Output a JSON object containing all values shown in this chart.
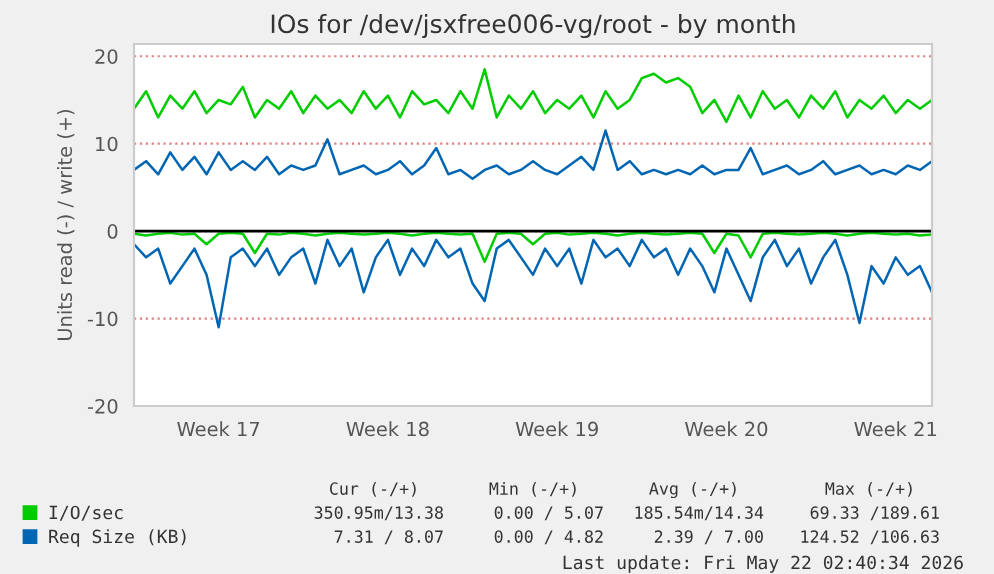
{
  "chart_data": {
    "type": "line",
    "title": "IOs for /dev/jsxfree006-vg/root - by month",
    "ylabel": "Units read (-) / write (+)",
    "categories": [
      null,
      null,
      null,
      null,
      null,
      null,
      null,
      "Week 17",
      null,
      null,
      null,
      null,
      null,
      null,
      null,
      null,
      null,
      null,
      null,
      null,
      null,
      "Week 18",
      null,
      null,
      null,
      null,
      null,
      null,
      null,
      null,
      null,
      null,
      null,
      null,
      null,
      "Week 19",
      null,
      null,
      null,
      null,
      null,
      null,
      null,
      null,
      null,
      null,
      null,
      null,
      null,
      "Week 20",
      null,
      null,
      null,
      null,
      null,
      null,
      null,
      null,
      null,
      null,
      null,
      null,
      null,
      "Week 21",
      null,
      null,
      null
    ],
    "series": [
      {
        "name": "I/O/sec",
        "color": "#00cc00",
        "values": [
          14,
          16,
          13,
          15.5,
          14,
          16,
          13.5,
          15,
          14.5,
          16.5,
          13,
          15,
          14,
          16,
          13.5,
          15.5,
          14,
          15,
          13.5,
          16,
          14,
          15.5,
          13,
          16,
          14.5,
          15,
          13.5,
          16,
          14,
          18.5,
          13,
          15.5,
          14,
          16,
          13.5,
          15,
          14,
          15.5,
          13,
          16,
          14,
          15,
          17.5,
          18,
          17,
          17.5,
          16.5,
          13.5,
          15,
          12.5,
          15.5,
          13,
          16,
          14,
          15,
          13,
          15.5,
          14,
          16,
          13,
          15,
          14,
          15.5,
          13.5,
          15,
          14,
          15
        ]
      },
      {
        "color": "#00cc00",
        "values": [
          -0.3,
          -0.5,
          -0.3,
          -0.2,
          -0.4,
          -0.3,
          -1.5,
          -0.3,
          -0.2,
          -0.3,
          -2.5,
          -0.3,
          -0.4,
          -0.2,
          -0.3,
          -0.5,
          -0.3,
          -0.2,
          -0.3,
          -0.4,
          -0.3,
          -0.2,
          -0.3,
          -0.5,
          -0.3,
          -0.2,
          -0.3,
          -0.4,
          -0.3,
          -3.5,
          -0.3,
          -0.2,
          -0.3,
          -1.5,
          -0.3,
          -0.2,
          -0.4,
          -0.3,
          -0.2,
          -0.3,
          -0.5,
          -0.3,
          -0.2,
          -0.3,
          -0.4,
          -0.3,
          -0.2,
          -0.3,
          -2.5,
          -0.3,
          -0.5,
          -3,
          -0.3,
          -0.2,
          -0.3,
          -0.4,
          -0.3,
          -0.2,
          -0.3,
          -0.5,
          -0.3,
          -0.2,
          -0.3,
          -0.4,
          -0.3,
          -0.5,
          -0.4
        ]
      },
      {
        "name": "Req Size (KB)",
        "color": "#0066b3",
        "values": [
          7,
          8,
          6.5,
          9,
          7,
          8.5,
          6.5,
          9,
          7,
          8,
          7,
          8.5,
          6.5,
          7.5,
          7,
          7.5,
          10.5,
          6.5,
          7,
          7.5,
          6.5,
          7,
          8,
          6.5,
          7.5,
          9.5,
          6.5,
          7,
          6,
          7,
          7.5,
          6.5,
          7,
          8,
          7,
          6.5,
          7.5,
          8.5,
          7,
          11.5,
          7,
          8,
          6.5,
          7,
          6.5,
          7,
          6.5,
          7.5,
          6.5,
          7,
          7,
          9.5,
          6.5,
          7,
          7.5,
          6.5,
          7,
          8,
          6.5,
          7,
          7.5,
          6.5,
          7,
          6.5,
          7.5,
          7,
          8
        ]
      },
      {
        "color": "#0066b3",
        "values": [
          -1.5,
          -3,
          -2,
          -6,
          -4,
          -2,
          -5,
          -11,
          -3,
          -2,
          -4,
          -2,
          -5,
          -3,
          -2,
          -6,
          -1,
          -4,
          -2,
          -7,
          -3,
          -1,
          -5,
          -2,
          -4,
          -1,
          -3,
          -2,
          -6,
          -8,
          -2,
          -1,
          -3,
          -5,
          -2,
          -4,
          -2,
          -6,
          -1,
          -3,
          -2,
          -4,
          -1,
          -3,
          -2,
          -5,
          -2,
          -4,
          -7,
          -2,
          -5,
          -8,
          -3,
          -1,
          -4,
          -2,
          -6,
          -3,
          -1,
          -5,
          -10.5,
          -4,
          -6,
          -3,
          -5,
          -4,
          -7
        ]
      }
    ],
    "ylim": [
      -20,
      21.4
    ],
    "yticks": [
      -20,
      -10,
      0,
      10,
      20
    ],
    "grid": "y",
    "legend": "bottom",
    "ref_lines": [
      {
        "axis": "y",
        "value": 0,
        "color": "#000000"
      }
    ],
    "annotations": [
      "Cur (-/+)",
      "Min (-/+)",
      "Avg (-/+)",
      "Max (-/+)",
      "350.95m/13.38",
      "0.00 / 5.07",
      "185.54m/14.34",
      "69.33 /189.61",
      "7.31 / 8.07",
      "0.00 / 4.82",
      "2.39 / 7.00",
      "124.52 /106.63",
      "Last update: Fri May 22 02:40:34 2026"
    ]
  }
}
